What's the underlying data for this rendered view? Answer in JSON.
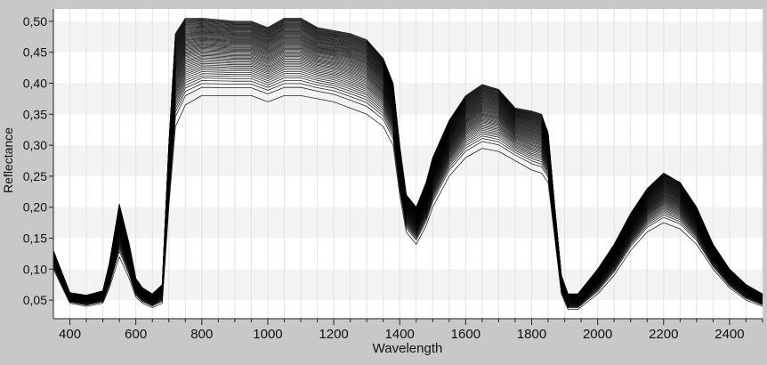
{
  "chart_data": {
    "type": "line",
    "title": "",
    "xlabel": "Wavelength",
    "ylabel": "Reflectance",
    "xlim": [
      350,
      2500
    ],
    "ylim": [
      0.02,
      0.52
    ],
    "x_ticks": [
      400,
      600,
      800,
      1000,
      1200,
      1400,
      1600,
      1800,
      2000,
      2200,
      2400
    ],
    "x_tick_labels": [
      "400",
      "600",
      "800",
      "1000",
      "1200",
      "1400",
      "1600",
      "1800",
      "2000",
      "2200",
      "2400"
    ],
    "y_ticks": [
      0.05,
      0.1,
      0.15,
      0.2,
      0.25,
      0.3,
      0.35,
      0.4,
      0.45,
      0.5
    ],
    "y_tick_labels": [
      "0,05",
      "0,10",
      "0,15",
      "0,20",
      "0,25",
      "0,30",
      "0,35",
      "0,40",
      "0,45",
      "0,50"
    ],
    "grid": true,
    "background_bands": true,
    "series_color": "#000000",
    "series_count": 60,
    "envelope": {
      "x": [
        350,
        400,
        450,
        500,
        520,
        550,
        580,
        600,
        620,
        650,
        680,
        700,
        720,
        750,
        800,
        900,
        950,
        1000,
        1050,
        1100,
        1150,
        1200,
        1250,
        1300,
        1350,
        1380,
        1400,
        1420,
        1450,
        1480,
        1500,
        1550,
        1600,
        1650,
        1700,
        1750,
        1800,
        1830,
        1850,
        1870,
        1890,
        1910,
        1940,
        2000,
        2050,
        2100,
        2150,
        2200,
        2250,
        2300,
        2350,
        2400,
        2450,
        2500
      ],
      "upper": [
        0.13,
        0.062,
        0.058,
        0.065,
        0.11,
        0.205,
        0.14,
        0.085,
        0.07,
        0.06,
        0.075,
        0.3,
        0.48,
        0.505,
        0.505,
        0.5,
        0.5,
        0.49,
        0.505,
        0.505,
        0.49,
        0.485,
        0.48,
        0.47,
        0.44,
        0.4,
        0.3,
        0.22,
        0.2,
        0.24,
        0.28,
        0.34,
        0.38,
        0.398,
        0.39,
        0.36,
        0.355,
        0.35,
        0.32,
        0.2,
        0.09,
        0.06,
        0.06,
        0.1,
        0.14,
        0.19,
        0.23,
        0.255,
        0.24,
        0.2,
        0.14,
        0.1,
        0.075,
        0.06
      ],
      "lower": [
        0.1,
        0.045,
        0.04,
        0.045,
        0.07,
        0.12,
        0.085,
        0.055,
        0.045,
        0.038,
        0.045,
        0.2,
        0.33,
        0.365,
        0.38,
        0.38,
        0.38,
        0.37,
        0.38,
        0.38,
        0.375,
        0.37,
        0.36,
        0.35,
        0.33,
        0.3,
        0.22,
        0.16,
        0.14,
        0.17,
        0.2,
        0.25,
        0.28,
        0.295,
        0.29,
        0.275,
        0.26,
        0.255,
        0.24,
        0.15,
        0.06,
        0.035,
        0.035,
        0.06,
        0.09,
        0.13,
        0.16,
        0.175,
        0.165,
        0.14,
        0.1,
        0.07,
        0.05,
        0.04
      ]
    }
  }
}
